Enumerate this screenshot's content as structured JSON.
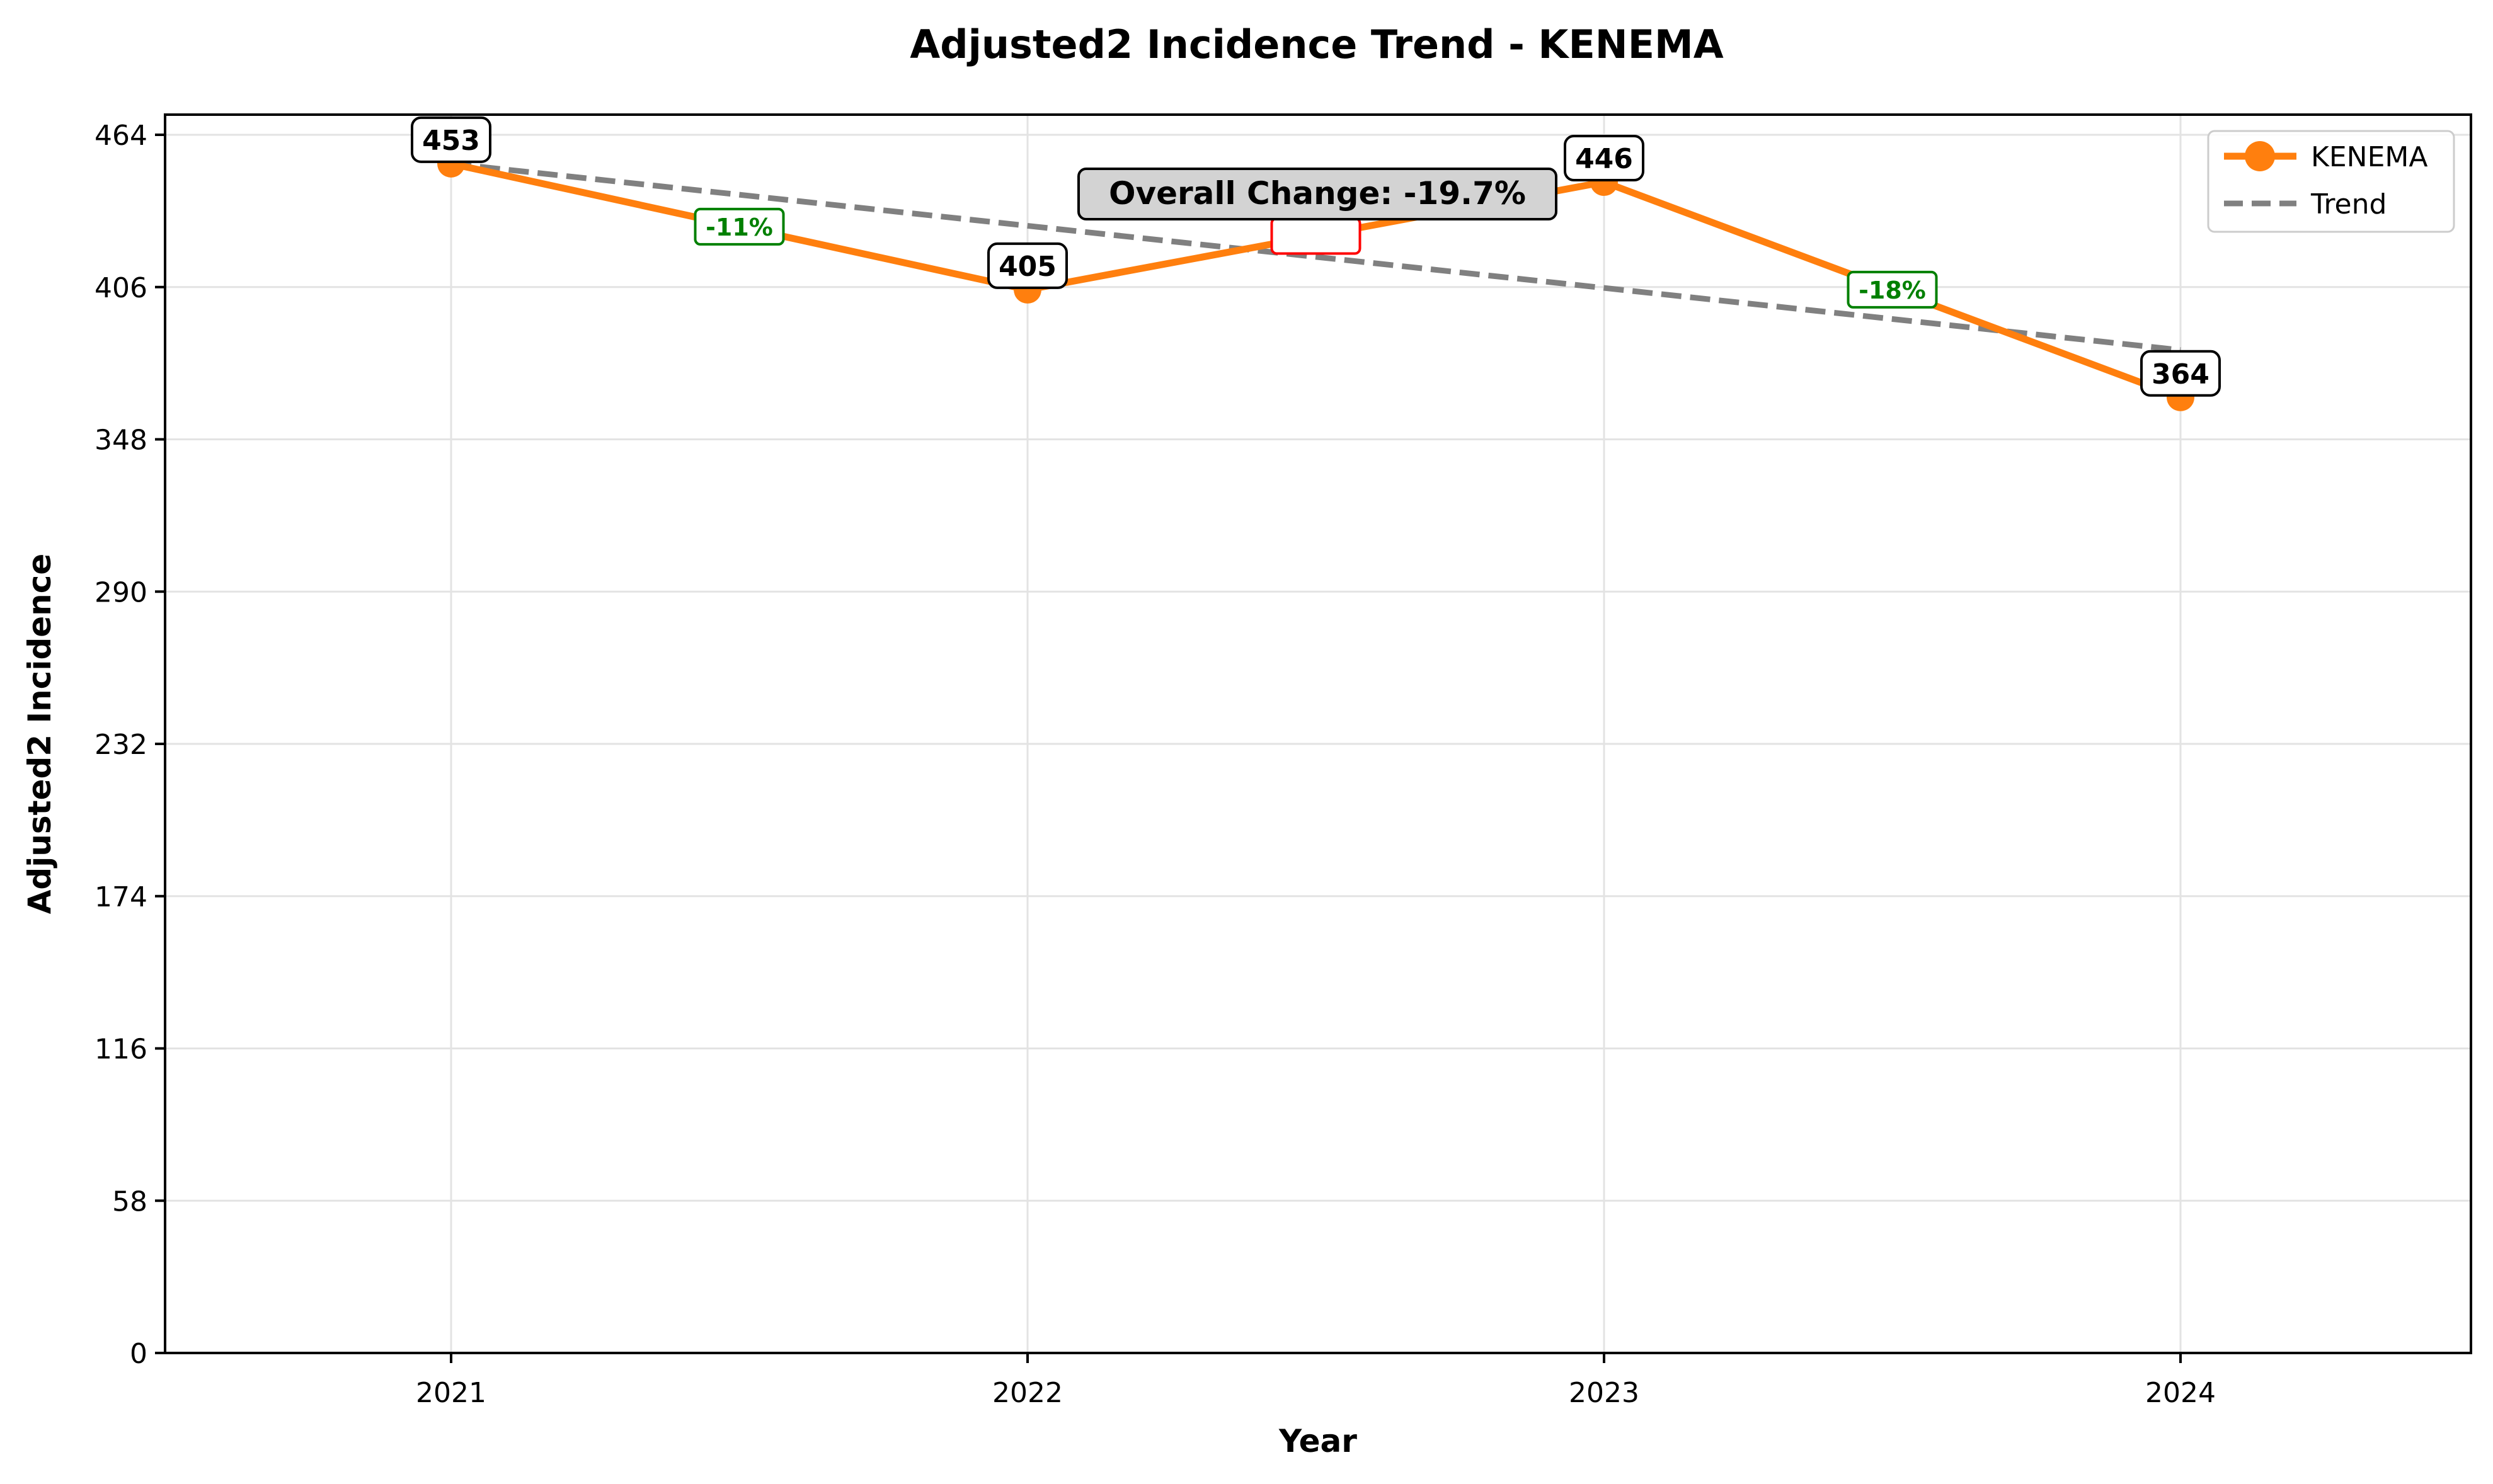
{
  "chart_data": {
    "type": "line",
    "title": "Adjusted2 Incidence Trend - KENEMA",
    "xlabel": "Year",
    "ylabel": "Adjusted2 Incidence",
    "categories": [
      "2021",
      "2022",
      "2023",
      "2024"
    ],
    "series": [
      {
        "name": "KENEMA",
        "values": [
          453,
          405,
          446,
          364
        ],
        "color": "#ff7f0e"
      }
    ],
    "trend": {
      "name": "Trend",
      "start": 453,
      "end": 382,
      "color": "#808080",
      "style": "dashed"
    },
    "data_labels": [
      "453",
      "405",
      "446",
      "364"
    ],
    "change_labels": [
      {
        "text": "-11%",
        "color": "#008000"
      },
      {
        "text": "",
        "color": "#ff0000"
      },
      {
        "text": "-18%",
        "color": "#008000"
      }
    ],
    "overall_change": "Overall Change: -19.7%",
    "ylim": [
      0,
      464
    ],
    "yticks": [
      0,
      58,
      116,
      174,
      232,
      290,
      348,
      406,
      464
    ],
    "grid": true,
    "legend": {
      "position": "top-right",
      "entries": [
        "KENEMA",
        "Trend"
      ]
    }
  }
}
